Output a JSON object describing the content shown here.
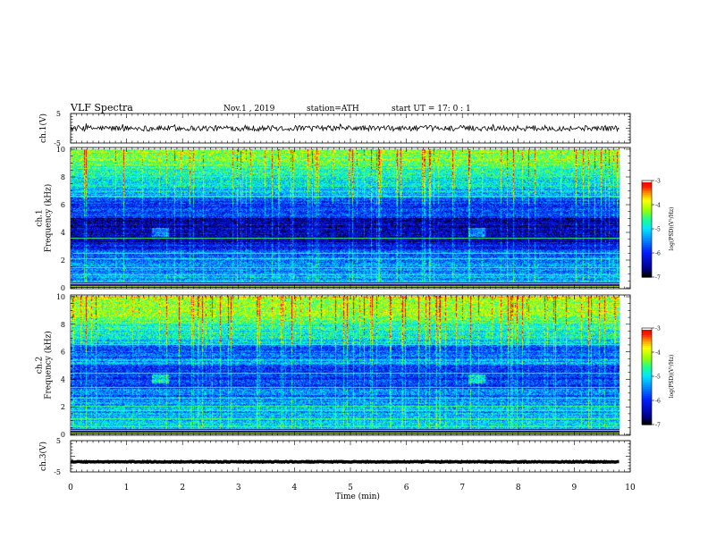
{
  "header": {
    "title": "VLF  Spectra",
    "date": "Nov.1  , 2019",
    "station": "station=ATH",
    "start": "start  UT  =    17: 0   : 1"
  },
  "colorbar": {
    "label": "log(PSD)(V²/Hz)",
    "ticks": [
      "-3",
      "-4",
      "-5",
      "-6",
      "-7"
    ],
    "colors": [
      "#000000",
      "#000090",
      "#0020ff",
      "#0090ff",
      "#00e0ff",
      "#20ff90",
      "#a0ff00",
      "#ffff00",
      "#ff9000",
      "#ff2000",
      "#d00000",
      "#ffffff"
    ]
  },
  "chart_data": [
    {
      "type": "line",
      "name": "ch1-waveform",
      "ylabel": "ch.1(V)",
      "ylim": [
        -5,
        5
      ],
      "yticks": [
        "5",
        "-5"
      ],
      "xlim": [
        0,
        10
      ],
      "baseline": 0,
      "noise_amplitude": 0.6,
      "color": "#000000"
    },
    {
      "type": "heatmap",
      "name": "ch1-spectrogram",
      "ylabel": "ch.1\nFrequency  (kHz)",
      "ylim": [
        0,
        10
      ],
      "yticks": [
        "0",
        "2",
        "4",
        "6",
        "8",
        "10"
      ],
      "xlim": [
        0,
        9.8
      ],
      "zlim": [
        -7,
        -3
      ],
      "bursts": [
        [
          1.45,
          1.75
        ],
        [
          7.1,
          7.4
        ]
      ],
      "hum_lines_khz": [
        0.4,
        0.9,
        1.4,
        2.1,
        2.5,
        3.6,
        6.6
      ]
    },
    {
      "type": "heatmap",
      "name": "ch2-spectrogram",
      "ylabel": "ch.2\nFrequency  (kHz)",
      "ylim": [
        0,
        10
      ],
      "yticks": [
        "0",
        "2",
        "4",
        "6",
        "8",
        "10"
      ],
      "xlim": [
        0,
        9.8
      ],
      "zlim": [
        -7,
        -3
      ],
      "bursts": [
        [
          1.45,
          1.75
        ],
        [
          7.1,
          7.4
        ]
      ],
      "hum_lines_khz": [
        0.5,
        1.1,
        1.7,
        2.0,
        2.6,
        3.4,
        4.4,
        6.5
      ]
    },
    {
      "type": "line",
      "name": "ch3-waveform",
      "ylabel": "ch.3(V)",
      "ylim": [
        -5,
        5
      ],
      "yticks": [
        "5",
        "-5"
      ],
      "xlim": [
        0,
        10
      ],
      "baseline": -2,
      "noise_amplitude": 0.08,
      "color": "#000000"
    }
  ],
  "xaxis": {
    "label": "Time  (min)",
    "ticks": [
      "0",
      "1",
      "2",
      "3",
      "4",
      "5",
      "6",
      "7",
      "8",
      "9",
      "10"
    ]
  }
}
